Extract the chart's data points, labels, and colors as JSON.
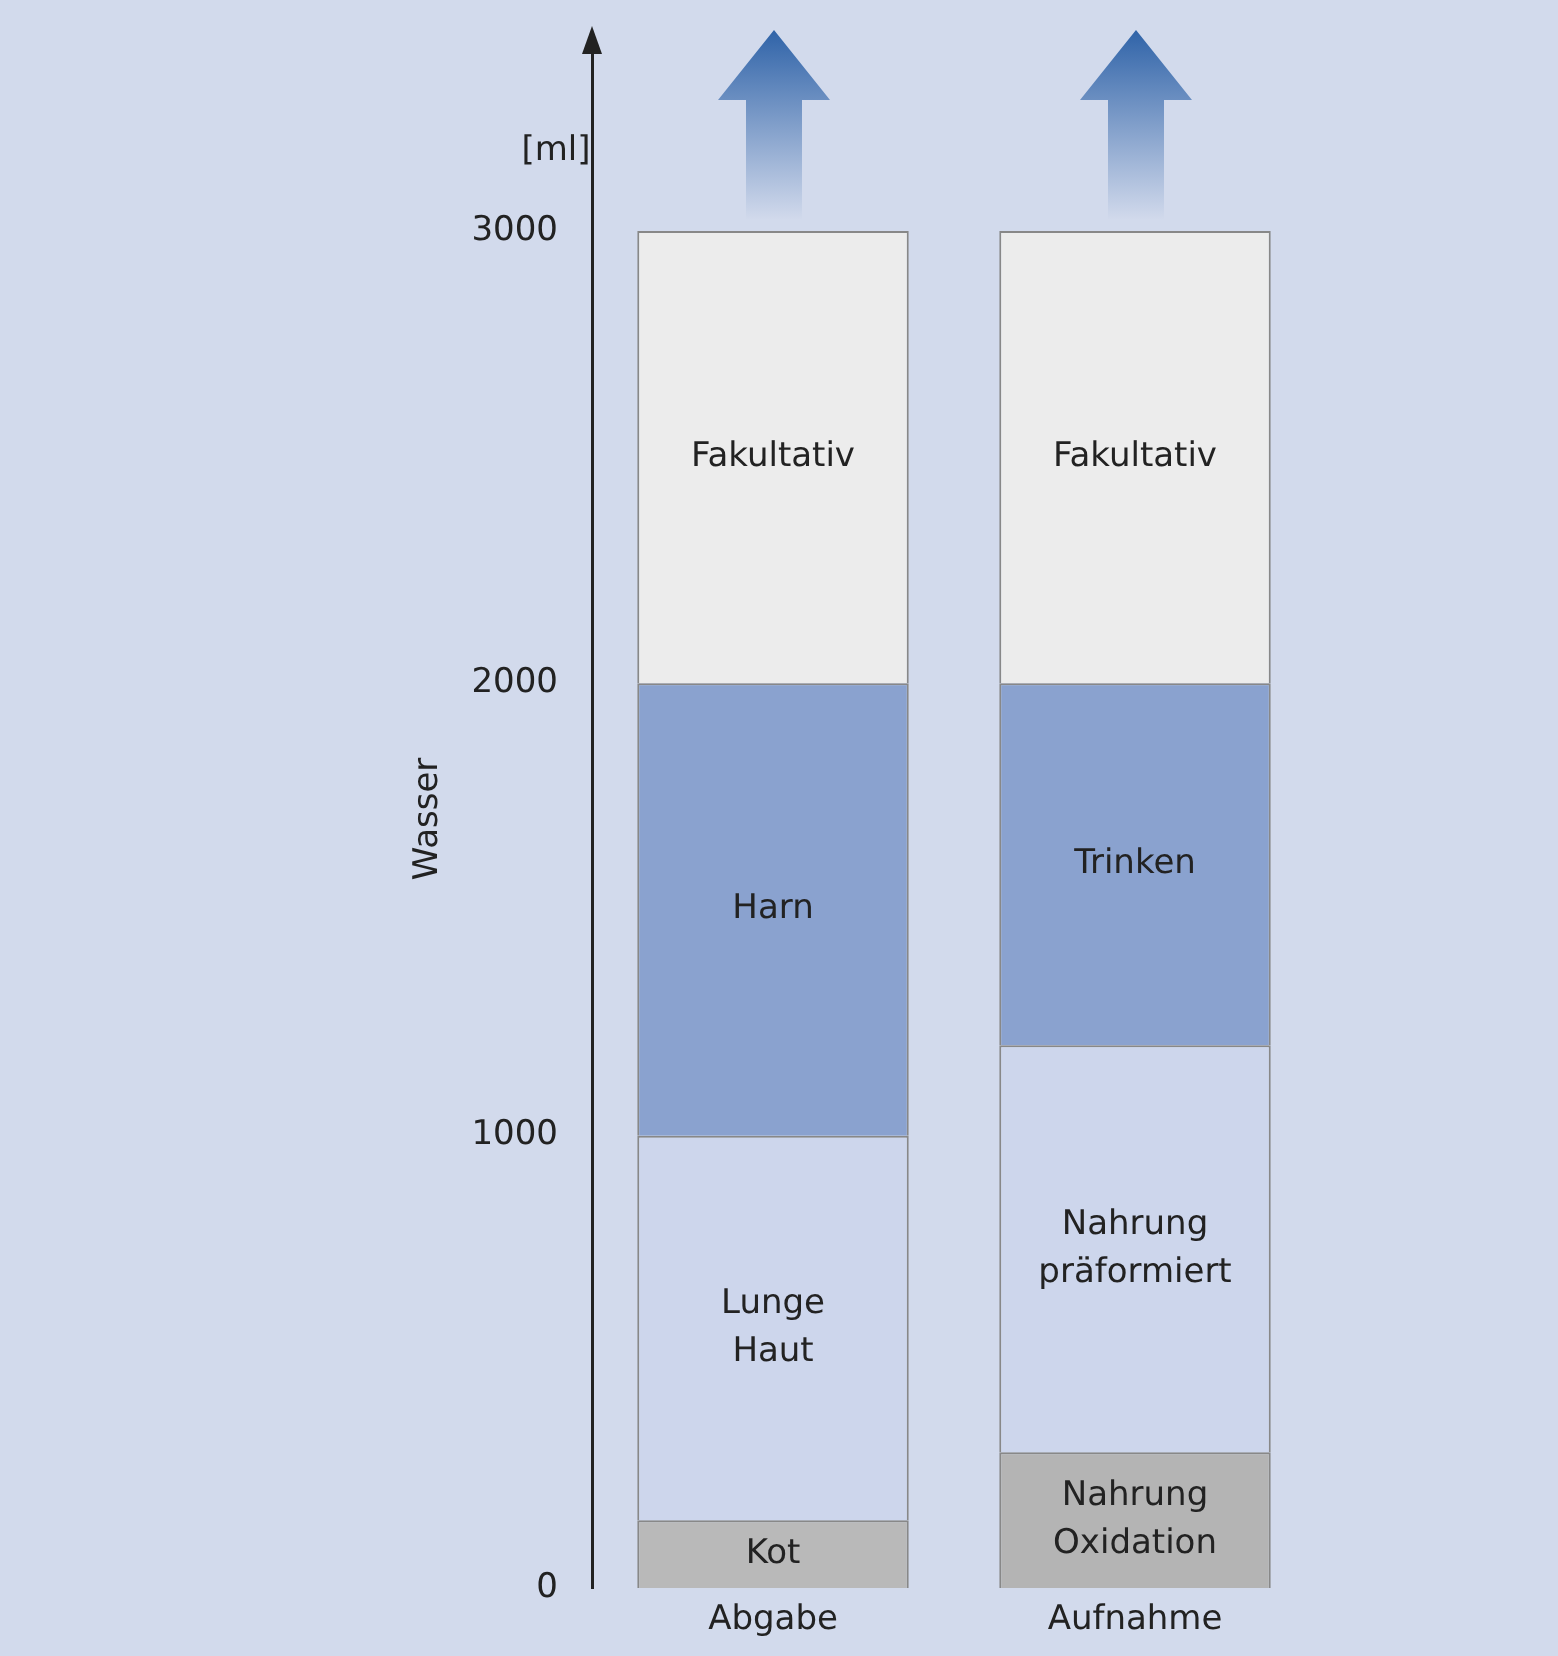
{
  "chart_data": {
    "type": "bar",
    "stacked": true,
    "ylabel": "Wasser",
    "categories": [
      "Abgabe",
      "Aufnahme"
    ],
    "series": [
      {
        "colors": [
          "#b9b9b9",
          "#b4b4b4"
        ],
        "values": [
          150,
          300
        ],
        "value_labels": [
          "Kot",
          "Nahrung\nOxidation"
        ]
      },
      {
        "colors": [
          "#cdd6ec",
          "#cdd6ec"
        ],
        "values": [
          850,
          900
        ],
        "value_labels": [
          "Lunge\nHaut",
          "Nahrung\npräformiert"
        ]
      },
      {
        "colors": [
          "#8aa2cf",
          "#8aa2cf"
        ],
        "values": [
          1000,
          800
        ],
        "value_labels": [
          "Harn",
          "Trinken"
        ]
      },
      {
        "colors": [
          "#ececec",
          "#ececec"
        ],
        "values": [
          1000,
          1000
        ],
        "value_labels": [
          "Fakultativ",
          "Fakultativ"
        ]
      }
    ],
    "ylim": [
      0,
      3400
    ],
    "yticks": [
      0,
      1000,
      2000,
      3000
    ],
    "grid": false,
    "legend": false,
    "annotations": [
      "[ml]"
    ]
  }
}
